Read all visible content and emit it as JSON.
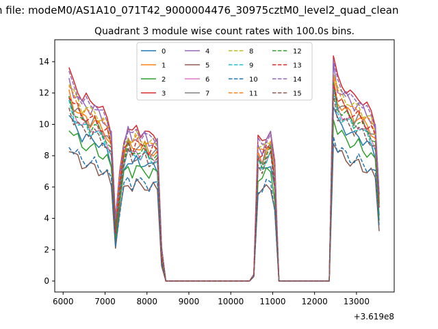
{
  "chart_data": {
    "type": "line",
    "suptitle": "n file: modeM0/AS1A10_071T42_9000004476_30975cztM0_level2_quad_clean",
    "title": "Quadrant 3 module wise count rates with 100.0s bins.",
    "xlabel": "",
    "ylabel": "",
    "x_offset_label": "+3.619e8",
    "xlim": [
      5800,
      13900
    ],
    "ylim": [
      -0.7,
      15.4
    ],
    "xticks": [
      6000,
      7000,
      8000,
      9000,
      10000,
      11000,
      12000,
      13000
    ],
    "yticks": [
      0,
      2,
      4,
      6,
      8,
      10,
      12,
      14
    ],
    "grid": false,
    "legend": {
      "position": "top-center",
      "columns": 4
    },
    "profile": {
      "x": [
        6140,
        6250,
        6350,
        6450,
        6550,
        6650,
        6750,
        6850,
        6950,
        7050,
        7150,
        7250,
        7350,
        7450,
        7550,
        7650,
        7750,
        7850,
        7950,
        8050,
        8150,
        8250,
        8350,
        8450,
        10450,
        10550,
        10650,
        10750,
        10850,
        10950,
        11050,
        11150,
        12350,
        12450,
        12550,
        12650,
        12750,
        12850,
        12950,
        13050,
        13150,
        13250,
        13350,
        13450,
        13540
      ],
      "shape": [
        0.92,
        0.86,
        0.84,
        0.8,
        0.8,
        0.78,
        0.79,
        0.76,
        0.74,
        0.72,
        0.66,
        0.26,
        0.46,
        0.62,
        0.68,
        0.64,
        0.67,
        0.65,
        0.66,
        0.63,
        0.64,
        0.63,
        0.14,
        0,
        0,
        0.03,
        0.62,
        0.6,
        0.64,
        0.66,
        0.5,
        0,
        0,
        0.98,
        0.88,
        0.86,
        0.84,
        0.82,
        0.8,
        0.81,
        0.78,
        0.76,
        0.74,
        0.7,
        0.38
      ]
    },
    "series": [
      {
        "name": "0",
        "color": "#1f77b4",
        "dash": "solid",
        "scale": 11.5
      },
      {
        "name": "1",
        "color": "#ff7f0e",
        "dash": "solid",
        "scale": 13.0
      },
      {
        "name": "2",
        "color": "#2ca02c",
        "dash": "solid",
        "scale": 10.8
      },
      {
        "name": "3",
        "color": "#d62728",
        "dash": "solid",
        "scale": 14.6
      },
      {
        "name": "4",
        "color": "#9467bd",
        "dash": "solid",
        "scale": 14.0
      },
      {
        "name": "5",
        "color": "#8c564b",
        "dash": "solid",
        "scale": 9.3
      },
      {
        "name": "6",
        "color": "#e377c2",
        "dash": "solid",
        "scale": 12.4
      },
      {
        "name": "7",
        "color": "#7f7f7f",
        "dash": "solid",
        "scale": 12.9
      },
      {
        "name": "8",
        "color": "#bcbd22",
        "dash": "dashed",
        "scale": 13.8
      },
      {
        "name": "9",
        "color": "#17becf",
        "dash": "dashed",
        "scale": 12.2
      },
      {
        "name": "10",
        "color": "#1f77b4",
        "dash": "dashed",
        "scale": 9.6
      },
      {
        "name": "11",
        "color": "#ff7f0e",
        "dash": "dashed",
        "scale": 13.5
      },
      {
        "name": "12",
        "color": "#2ca02c",
        "dash": "dashed",
        "scale": 12.6
      },
      {
        "name": "13",
        "color": "#d62728",
        "dash": "dashed",
        "scale": 13.1
      },
      {
        "name": "14",
        "color": "#9467bd",
        "dash": "dashed",
        "scale": 14.3
      },
      {
        "name": "15",
        "color": "#8c564b",
        "dash": "dashed",
        "scale": 12.0
      }
    ]
  }
}
